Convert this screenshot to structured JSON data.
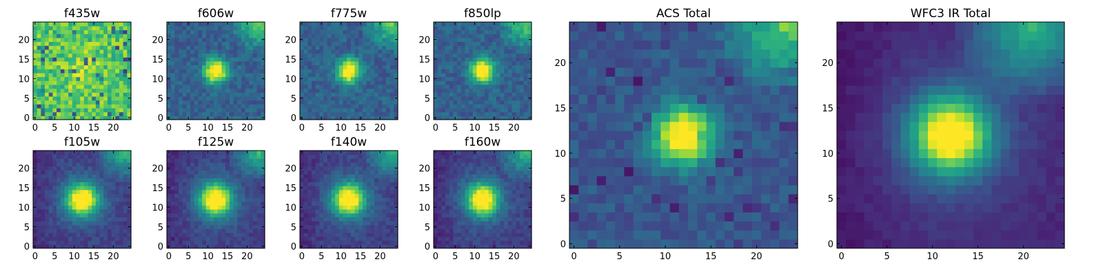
{
  "chart_data": [
    {
      "type": "heatmap",
      "title": "f435w",
      "xlim": [
        -0.5,
        24.5
      ],
      "ylim": [
        -0.5,
        24.5
      ],
      "xticks": [
        0,
        5,
        10,
        15,
        20
      ],
      "yticks": [
        0,
        5,
        10,
        15,
        20
      ],
      "colormap": "viridis",
      "source_size": "small",
      "image": "noise"
    },
    {
      "type": "heatmap",
      "title": "f606w",
      "xlim": [
        -0.5,
        24.5
      ],
      "ylim": [
        -0.5,
        24.5
      ],
      "xticks": [
        0,
        5,
        10,
        15,
        20
      ],
      "yticks": [
        0,
        5,
        10,
        15,
        20
      ],
      "colormap": "viridis",
      "source_size": "small",
      "image": "source"
    },
    {
      "type": "heatmap",
      "title": "f775w",
      "xlim": [
        -0.5,
        24.5
      ],
      "ylim": [
        -0.5,
        24.5
      ],
      "xticks": [
        0,
        5,
        10,
        15,
        20
      ],
      "yticks": [
        0,
        5,
        10,
        15,
        20
      ],
      "colormap": "viridis",
      "source_size": "small",
      "image": "source"
    },
    {
      "type": "heatmap",
      "title": "f850lp",
      "xlim": [
        -0.5,
        24.5
      ],
      "ylim": [
        -0.5,
        24.5
      ],
      "xticks": [
        0,
        5,
        10,
        15,
        20
      ],
      "yticks": [
        0,
        5,
        10,
        15,
        20
      ],
      "colormap": "viridis",
      "source_size": "small",
      "image": "source"
    },
    {
      "type": "heatmap",
      "title": "f105w",
      "xlim": [
        -0.5,
        24.5
      ],
      "ylim": [
        -0.5,
        24.5
      ],
      "xticks": [
        0,
        5,
        10,
        15,
        20
      ],
      "yticks": [
        0,
        5,
        10,
        15,
        20
      ],
      "colormap": "viridis",
      "source_size": "small",
      "image": "ir"
    },
    {
      "type": "heatmap",
      "title": "f125w",
      "xlim": [
        -0.5,
        24.5
      ],
      "ylim": [
        -0.5,
        24.5
      ],
      "xticks": [
        0,
        5,
        10,
        15,
        20
      ],
      "yticks": [
        0,
        5,
        10,
        15,
        20
      ],
      "colormap": "viridis",
      "source_size": "small",
      "image": "ir"
    },
    {
      "type": "heatmap",
      "title": "f140w",
      "xlim": [
        -0.5,
        24.5
      ],
      "ylim": [
        -0.5,
        24.5
      ],
      "xticks": [
        0,
        5,
        10,
        15,
        20
      ],
      "yticks": [
        0,
        5,
        10,
        15,
        20
      ],
      "colormap": "viridis",
      "source_size": "small",
      "image": "ir"
    },
    {
      "type": "heatmap",
      "title": "f160w",
      "xlim": [
        -0.5,
        24.5
      ],
      "ylim": [
        -0.5,
        24.5
      ],
      "xticks": [
        0,
        5,
        10,
        15,
        20
      ],
      "yticks": [
        0,
        5,
        10,
        15,
        20
      ],
      "colormap": "viridis",
      "source_size": "small",
      "image": "ir"
    },
    {
      "type": "heatmap",
      "title": "ACS Total",
      "xlim": [
        -0.5,
        24.5
      ],
      "ylim": [
        -0.5,
        24.5
      ],
      "xticks": [
        0,
        5,
        10,
        15,
        20
      ],
      "yticks": [
        0,
        5,
        10,
        15,
        20
      ],
      "colormap": "viridis",
      "source_size": "large",
      "image": "acs"
    },
    {
      "type": "heatmap",
      "title": "WFC3 IR Total",
      "xlim": [
        -0.5,
        24.5
      ],
      "ylim": [
        -0.5,
        24.5
      ],
      "xticks": [
        0,
        5,
        10,
        15,
        20
      ],
      "yticks": [
        0,
        5,
        10,
        15,
        20
      ],
      "colormap": "viridis",
      "source_size": "large",
      "image": "wfc3"
    }
  ]
}
